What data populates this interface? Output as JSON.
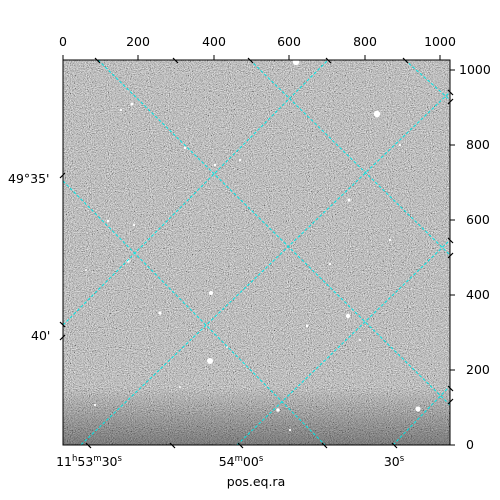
{
  "figure": {
    "x_axis_label": "pos.eq.ra",
    "top_ticks": [
      "0",
      "200",
      "400",
      "600",
      "800",
      "1000"
    ],
    "right_ticks": [
      "1000",
      "800",
      "600",
      "400",
      "200",
      "0"
    ],
    "ra_ticks": [
      {
        "h": "11",
        "hs": "h",
        "m": "53",
        "ms": "m",
        "s": "30",
        "ss": "s"
      },
      {
        "m": "54",
        "ms": "m",
        "s": "00",
        "ss": "s"
      },
      {
        "s": "30",
        "ss": "s"
      }
    ],
    "dec_ticks": [
      "49°35'",
      "40'"
    ],
    "grid_color": "#00e5e5"
  }
}
